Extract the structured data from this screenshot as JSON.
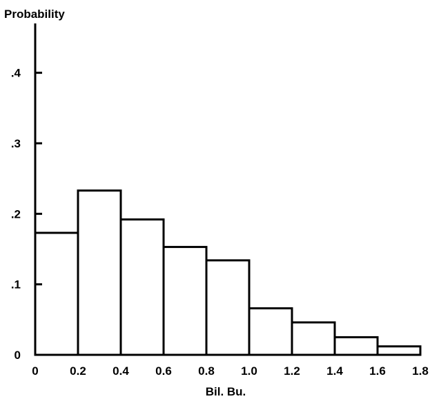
{
  "chart_data": {
    "type": "bar",
    "title": "",
    "ylabel": "Probability",
    "xlabel": "Bil. Bu.",
    "bin_edges": [
      0,
      0.2,
      0.4,
      0.6,
      0.8,
      1.0,
      1.2,
      1.4,
      1.6,
      1.8
    ],
    "values": [
      0.173,
      0.233,
      0.192,
      0.153,
      0.134,
      0.066,
      0.046,
      0.025,
      0.012
    ],
    "xlim": [
      0,
      1.8
    ],
    "ylim": [
      0,
      0.47
    ],
    "x_tick_values": [
      0,
      0.2,
      0.4,
      0.6,
      0.8,
      1.0,
      1.2,
      1.4,
      1.6,
      1.8
    ],
    "x_tick_labels": [
      "0",
      "0.2",
      "0.4",
      "0.6",
      "0.8",
      "1.0",
      "1.2",
      "1.4",
      "1.6",
      "1.8"
    ],
    "y_tick_values": [
      0,
      0.1,
      0.2,
      0.3,
      0.4
    ],
    "y_tick_labels": [
      "0",
      ".1",
      ".2",
      ".3",
      ".4"
    ],
    "grid": false
  }
}
